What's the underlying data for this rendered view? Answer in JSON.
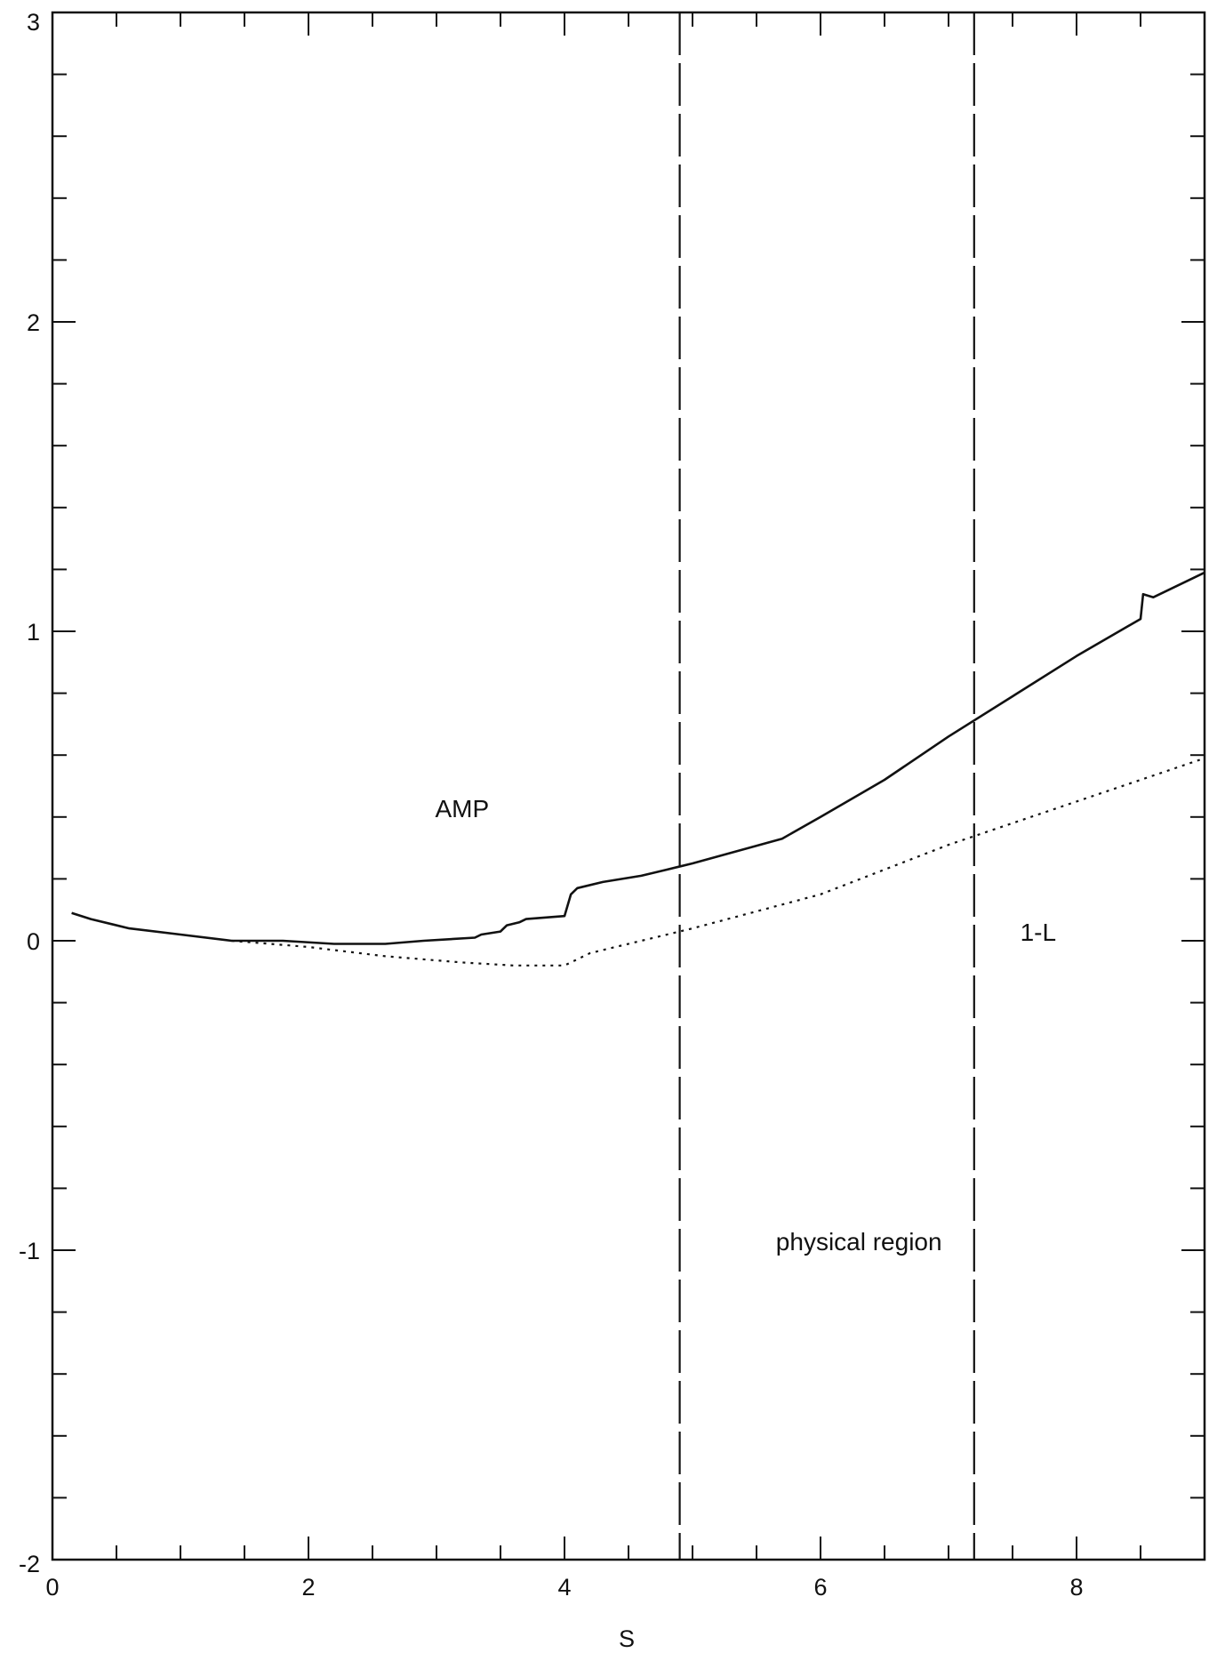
{
  "chart_data": {
    "type": "line",
    "title": "",
    "xlabel": "S",
    "ylabel": "",
    "xlim": [
      0,
      9
    ],
    "ylim": [
      -2,
      3
    ],
    "x_ticks": [
      0,
      2,
      4,
      6,
      8
    ],
    "x_tick_labels": [
      "0",
      "2",
      "4",
      "6",
      "8"
    ],
    "y_ticks": [
      -2,
      -1,
      0,
      1,
      2,
      3
    ],
    "y_tick_labels": [
      "-2",
      "-1",
      "0",
      "1",
      "2",
      "3"
    ],
    "x_minor_step": 0.5,
    "y_minor_step": 0.2,
    "grid": false,
    "series": [
      {
        "style": "solid",
        "color": "#111111",
        "x": [
          0.15,
          0.3,
          0.6,
          1.0,
          1.4,
          1.8,
          2.2,
          2.6,
          2.9,
          3.3,
          3.35,
          3.5,
          3.55,
          3.65,
          3.7,
          4.0,
          4.05,
          4.1,
          4.3,
          4.6,
          4.8,
          5.0,
          5.7,
          6.0,
          6.5,
          7.0,
          7.5,
          8.0,
          8.5,
          8.52,
          8.6,
          9.0
        ],
        "y": [
          0.09,
          0.07,
          0.04,
          0.02,
          0.0,
          0.0,
          -0.01,
          -0.01,
          0.0,
          0.01,
          0.02,
          0.03,
          0.05,
          0.06,
          0.07,
          0.08,
          0.15,
          0.17,
          0.19,
          0.21,
          0.23,
          0.25,
          0.33,
          0.4,
          0.52,
          0.66,
          0.79,
          0.92,
          1.04,
          1.12,
          1.11,
          1.19
        ]
      },
      {
        "style": "dotted",
        "color": "#111111",
        "x": [
          1.4,
          2.0,
          2.6,
          3.2,
          3.6,
          4.0,
          4.2,
          5.0,
          6.0,
          7.0,
          8.0,
          9.0
        ],
        "y": [
          0.0,
          -0.02,
          -0.05,
          -0.07,
          -0.08,
          -0.08,
          -0.04,
          0.04,
          0.15,
          0.31,
          0.45,
          0.59
        ]
      }
    ],
    "vertical_lines": [
      {
        "x": 4.9,
        "style": "dashed",
        "color": "#111111"
      },
      {
        "x": 7.2,
        "style": "dashed",
        "color": "#111111"
      }
    ],
    "annotations": [
      {
        "text": "AMP",
        "x": 3.2,
        "y": 0.4
      },
      {
        "text": "physical region",
        "x": 6.3,
        "y": -1.0
      },
      {
        "text": "1-L",
        "x": 7.7,
        "y": 0.0
      }
    ]
  }
}
